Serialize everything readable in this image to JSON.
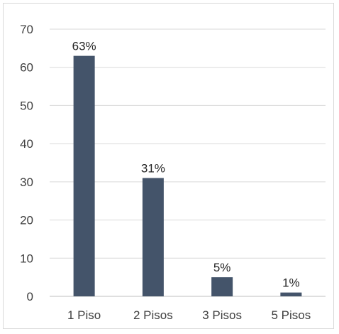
{
  "chart_data": {
    "type": "bar",
    "categories": [
      "1 Piso",
      "2 Pisos",
      "3 Pisos",
      "5 Pisos"
    ],
    "values": [
      63,
      31,
      5,
      1
    ],
    "data_labels": [
      "63%",
      "31%",
      "5%",
      "1%"
    ],
    "title": "",
    "xlabel": "",
    "ylabel": "",
    "ylim": [
      0,
      70
    ],
    "yticks": [
      "0",
      "10",
      "20",
      "30",
      "40",
      "50",
      "60",
      "70"
    ],
    "grid": true,
    "legend": "none",
    "bar_color": "#44546a",
    "grid_color": "#d9d9d9"
  }
}
